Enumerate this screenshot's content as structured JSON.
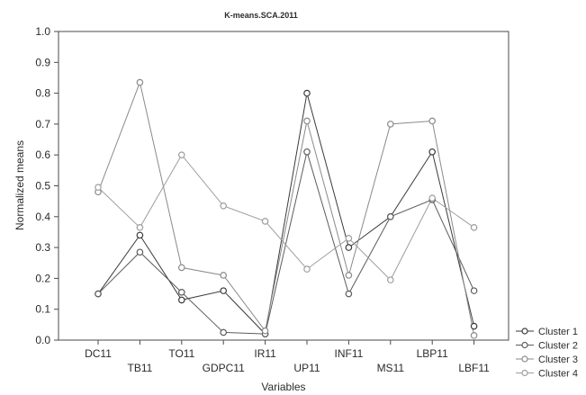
{
  "chart_data": {
    "type": "line",
    "title": "K-means.SCA.2011",
    "xlabel": "Variables",
    "ylabel": "Normalized means",
    "ylim": [
      0,
      1
    ],
    "yticks": [
      "0.0",
      "0.1",
      "0.2",
      "0.3",
      "0.4",
      "0.5",
      "0.6",
      "0.7",
      "0.8",
      "0.9",
      "1.0"
    ],
    "grid": false,
    "legend_position": "bottom-right",
    "categories": [
      "DC11",
      "TB11",
      "TO11",
      "GDPC11",
      "IR11",
      "UP11",
      "INF11",
      "MS11",
      "LBP11",
      "LBF11"
    ],
    "series": [
      {
        "name": "Cluster 1",
        "color": "#3a3a3a",
        "values": [
          0.15,
          0.34,
          0.13,
          0.16,
          0.02,
          0.8,
          0.3,
          0.4,
          0.61,
          0.045
        ]
      },
      {
        "name": "Cluster 2",
        "color": "#5c5c5c",
        "values": [
          0.15,
          0.285,
          0.155,
          0.025,
          0.02,
          0.61,
          0.15,
          0.4,
          0.455,
          0.16
        ]
      },
      {
        "name": "Cluster 3",
        "color": "#8a8a8a",
        "values": [
          0.48,
          0.835,
          0.235,
          0.21,
          0.03,
          0.71,
          0.21,
          0.7,
          0.71,
          0.015
        ]
      },
      {
        "name": "Cluster 4",
        "color": "#9e9e9e",
        "values": [
          0.495,
          0.365,
          0.6,
          0.435,
          0.385,
          0.23,
          0.33,
          0.195,
          0.46,
          0.365
        ]
      }
    ]
  }
}
